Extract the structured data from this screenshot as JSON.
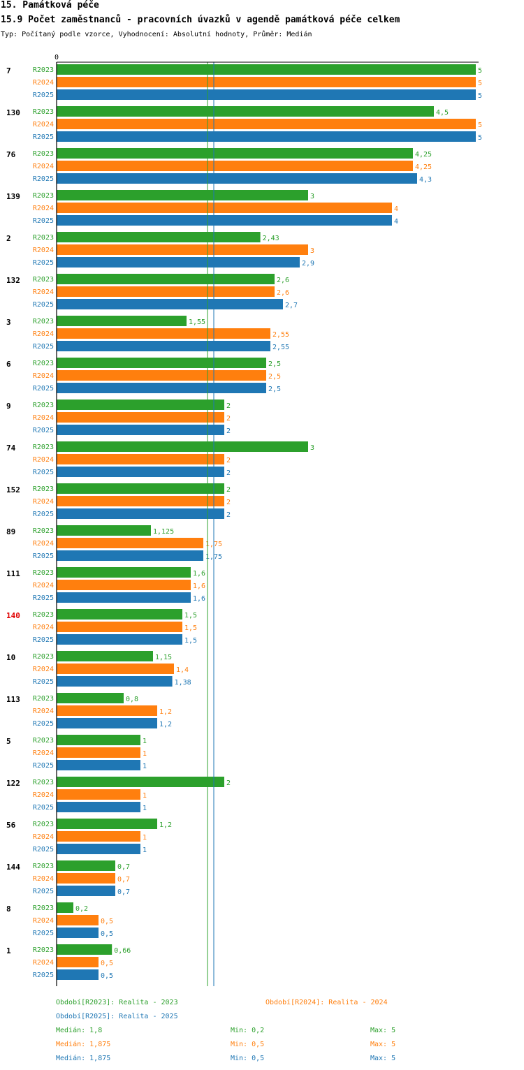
{
  "header": {
    "title": "15. Památková péče",
    "subtitle": "15.9 Počet zaměstnanců - pracovních úvazků v agendě památková péče celkem",
    "type_line": "Typ: Počítaný podle vzorce, Vyhodnocení: Absolutní hodnoty, Průměr: Medián"
  },
  "chart_data": {
    "type": "bar",
    "orientation": "horizontal",
    "title": "15.9 Počet zaměstnanců - pracovních úvazků v agendě památková péče celkem",
    "axis_zero_label": "0",
    "xlim": [
      0,
      5
    ],
    "series_names": [
      "R2023",
      "R2024",
      "R2025"
    ],
    "colors": {
      "R2023": "#2ca02c",
      "R2024": "#ff7f0e",
      "R2025": "#1f77b4",
      "highlight": "#e00000"
    },
    "categories": [
      "7",
      "130",
      "76",
      "139",
      "2",
      "132",
      "3",
      "6",
      "9",
      "74",
      "152",
      "89",
      "111",
      "140",
      "10",
      "113",
      "5",
      "122",
      "56",
      "144",
      "8",
      "1"
    ],
    "highlight_category": "140",
    "series": [
      {
        "name": "R2023",
        "values": [
          5,
          4.5,
          4.25,
          3,
          2.43,
          2.6,
          1.55,
          2.5,
          2,
          3,
          2,
          1.125,
          1.6,
          1.5,
          1.15,
          0.8,
          1,
          2,
          1.2,
          0.7,
          0.2,
          0.66
        ],
        "labels": [
          "5",
          "4,5",
          "4,25",
          "3",
          "2,43",
          "2,6",
          "1,55",
          "2,5",
          "2",
          "3",
          "2",
          "1,125",
          "1,6",
          "1,5",
          "1,15",
          "0,8",
          "1",
          "2",
          "1,2",
          "0,7",
          "0,2",
          "0,66"
        ]
      },
      {
        "name": "R2024",
        "values": [
          5,
          5,
          4.25,
          4,
          3,
          2.6,
          2.55,
          2.5,
          2,
          2,
          2,
          1.75,
          1.6,
          1.5,
          1.4,
          1.2,
          1,
          1,
          1,
          0.7,
          0.5,
          0.5
        ],
        "labels": [
          "5",
          "5",
          "4,25",
          "4",
          "3",
          "2,6",
          "2,55",
          "2,5",
          "2",
          "2",
          "2",
          "1,75",
          "1,6",
          "1,5",
          "1,4",
          "1,2",
          "1",
          "1",
          "1",
          "0,7",
          "0,5",
          "0,5"
        ]
      },
      {
        "name": "R2025",
        "values": [
          5,
          5,
          4.3,
          4,
          2.9,
          2.7,
          2.55,
          2.5,
          2,
          2,
          2,
          1.75,
          1.6,
          1.5,
          1.38,
          1.2,
          1,
          1,
          1,
          0.7,
          0.5,
          0.5
        ],
        "labels": [
          "5",
          "5",
          "4,3",
          "4",
          "2,9",
          "2,7",
          "2,55",
          "2,5",
          "2",
          "2",
          "2",
          "1,75",
          "1,6",
          "1,5",
          "1,38",
          "1,2",
          "1",
          "1",
          "1",
          "0,7",
          "0,5",
          "0,5"
        ]
      }
    ],
    "median_lines": [
      1.8,
      1.875
    ],
    "legend": [
      {
        "series": "R2023",
        "text": "Období[R2023]: Realita - 2023"
      },
      {
        "series": "R2024",
        "text": "Období[R2024]: Realita - 2024"
      },
      {
        "series": "R2025",
        "text": "Období[R2025]: Realita - 2025"
      }
    ],
    "stats": [
      {
        "series": "R2023",
        "median": "Medián: 1,8",
        "min": "Min: 0,2",
        "max": "Max: 5"
      },
      {
        "series": "R2024",
        "median": "Medián: 1,875",
        "min": "Min: 0,5",
        "max": "Max: 5"
      },
      {
        "series": "R2025",
        "median": "Medián: 1,875",
        "min": "Min: 0,5",
        "max": "Max: 5"
      }
    ]
  }
}
